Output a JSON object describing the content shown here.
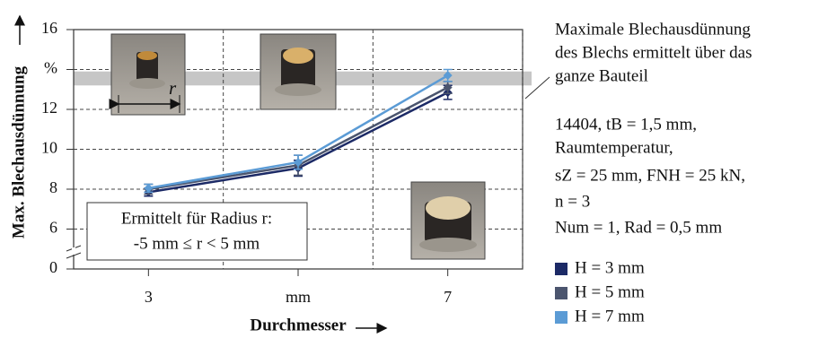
{
  "chart_data": {
    "type": "line",
    "y_label": "Max. Blechausdünnung",
    "x_label": "Durchmesser",
    "categories": [
      "3",
      "mm",
      "7"
    ],
    "ylim": [
      0,
      16
    ],
    "axis_break": [
      0,
      4
    ],
    "yticks": [
      0,
      6,
      8,
      10,
      12,
      {
        "value": 14,
        "label": "%"
      },
      16
    ],
    "grid": true,
    "band": [
      13.2,
      13.9
    ],
    "series": [
      {
        "name": "H = 3 mm",
        "color": "#1c2a66",
        "values": [
          7.85,
          9.05,
          12.85
        ],
        "errors": [
          0.2,
          0.4,
          0.35
        ]
      },
      {
        "name": "H = 5 mm",
        "color": "#4b556e",
        "values": [
          8.0,
          9.2,
          13.1
        ],
        "errors": [
          0.25,
          0.5,
          0.3
        ]
      },
      {
        "name": "H = 7 mm",
        "color": "#5b9bd5",
        "values": [
          8.05,
          9.35,
          13.7
        ],
        "errors": [
          0.2,
          0.35,
          0.3
        ]
      }
    ],
    "photo_label": "r",
    "inset_lines": [
      "Ermittelt für Radius r:",
      "-5 mm ≤ r < 5 mm"
    ],
    "annotation": [
      "Maximale Blechausdünnung",
      "des Blechs ermittelt über das",
      "ganze Bauteil"
    ],
    "conditions": [
      "14404, tB = 1,5 mm,",
      "Raumtemperatur,",
      "sZ = 25 mm, FNH = 25 kN,",
      "n = 3",
      "Num = 1, Rad = 0,5 mm"
    ]
  }
}
